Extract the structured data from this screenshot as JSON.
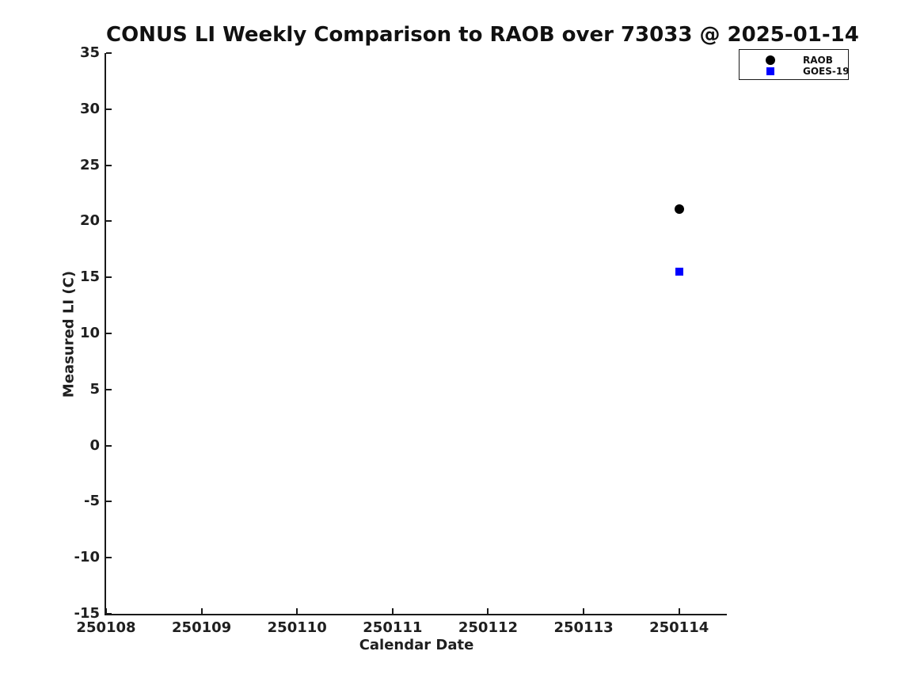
{
  "chart_data": {
    "type": "scatter",
    "title": "CONUS LI Weekly Comparison to RAOB over 73033 @ 2025-01-14",
    "xlabel": "Calendar Date",
    "ylabel": "Measured LI (C)",
    "xlim": [
      250108,
      250114.5
    ],
    "ylim": [
      -15,
      35
    ],
    "xticks": [
      250108,
      250109,
      250110,
      250111,
      250112,
      250113,
      250114
    ],
    "yticks": [
      35,
      30,
      25,
      20,
      15,
      10,
      5,
      0,
      -5,
      -10,
      -15
    ],
    "grid": false,
    "background_color": "#ffffff",
    "axis_color": "#1a1a1a",
    "legend": {
      "position": "top-right",
      "border_color": "#1a1a1a"
    },
    "series": [
      {
        "name": "RAOB",
        "marker": "circle",
        "color": "#000000",
        "points": [
          {
            "x": 250114,
            "y": 21.1
          }
        ]
      },
      {
        "name": "GOES-19",
        "marker": "square",
        "color": "#0000ff",
        "points": [
          {
            "x": 250114,
            "y": 15.5
          }
        ]
      }
    ]
  }
}
